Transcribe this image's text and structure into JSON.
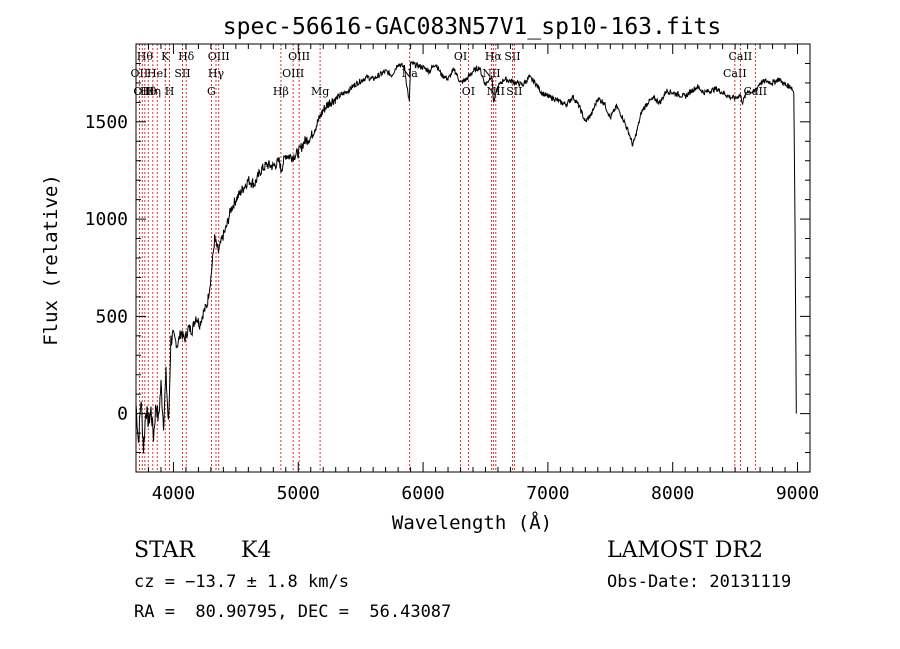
{
  "chart_data": {
    "type": "line",
    "title": "spec-56616-GAC083N57V1_sp10-163.fits",
    "xlabel": "Wavelength (Å)",
    "ylabel": "Flux (relative)",
    "xlim": [
      3700,
      9100
    ],
    "ylim": [
      -300,
      1900
    ],
    "xticks": [
      4000,
      5000,
      6000,
      7000,
      8000,
      9000
    ],
    "yticks": [
      0,
      500,
      1000,
      1500
    ],
    "grid": false,
    "line_color": "#000000",
    "marker_color": "#cc0000",
    "series": [
      {
        "x": [
          3700,
          3720,
          3740,
          3760,
          3780,
          3800,
          3820,
          3840,
          3860,
          3880,
          3900,
          3920,
          3940,
          3960,
          3980,
          4000,
          4030,
          4060,
          4090,
          4120,
          4150,
          4180,
          4210,
          4240,
          4270,
          4300,
          4330,
          4360,
          4390,
          4420,
          4460,
          4500,
          4550,
          4600,
          4650,
          4700,
          4750,
          4800,
          4850,
          4860,
          4900,
          4950,
          5000,
          5050,
          5100,
          5150,
          5200,
          5250,
          5300,
          5350,
          5400,
          5450,
          5500,
          5550,
          5600,
          5650,
          5700,
          5750,
          5800,
          5850,
          5890,
          5900,
          5950,
          6000,
          6050,
          6100,
          6150,
          6200,
          6250,
          6300,
          6350,
          6400,
          6450,
          6500,
          6550,
          6565,
          6600,
          6650,
          6700,
          6750,
          6800,
          6850,
          6900,
          6950,
          7000,
          7050,
          7100,
          7150,
          7200,
          7250,
          7300,
          7350,
          7400,
          7450,
          7500,
          7550,
          7600,
          7650,
          7680,
          7700,
          7750,
          7800,
          7850,
          7900,
          7950,
          8000,
          8050,
          8100,
          8150,
          8200,
          8250,
          8300,
          8350,
          8400,
          8450,
          8500,
          8540,
          8560,
          8600,
          8650,
          8700,
          8750,
          8800,
          8850,
          8900,
          8950,
          8970,
          8980,
          8990
        ],
        "y": [
          50,
          -150,
          80,
          -180,
          30,
          -50,
          20,
          -120,
          50,
          -30,
          150,
          -50,
          200,
          -60,
          380,
          400,
          350,
          420,
          380,
          440,
          430,
          500,
          460,
          520,
          560,
          700,
          900,
          830,
          900,
          950,
          1050,
          1100,
          1150,
          1200,
          1180,
          1250,
          1280,
          1270,
          1300,
          1250,
          1330,
          1320,
          1340,
          1400,
          1420,
          1490,
          1560,
          1600,
          1620,
          1640,
          1660,
          1690,
          1710,
          1730,
          1720,
          1740,
          1760,
          1740,
          1800,
          1780,
          1600,
          1800,
          1790,
          1780,
          1760,
          1800,
          1740,
          1720,
          1770,
          1700,
          1720,
          1760,
          1780,
          1690,
          1740,
          1600,
          1680,
          1720,
          1710,
          1700,
          1690,
          1730,
          1700,
          1650,
          1630,
          1620,
          1600,
          1590,
          1630,
          1580,
          1500,
          1540,
          1620,
          1600,
          1520,
          1580,
          1520,
          1440,
          1380,
          1420,
          1550,
          1600,
          1620,
          1600,
          1660,
          1650,
          1640,
          1630,
          1660,
          1680,
          1650,
          1660,
          1670,
          1650,
          1630,
          1620,
          1640,
          1600,
          1660,
          1650,
          1700,
          1710,
          1700,
          1720,
          1690,
          1680,
          1650,
          1000,
          0
        ]
      }
    ],
    "lines": [
      {
        "wavelength": 3727,
        "label": "OII",
        "row": 2
      },
      {
        "wavelength": 3750,
        "label": "OII",
        "row": 3
      },
      {
        "wavelength": 3771,
        "label": "Hθ",
        "row": 1
      },
      {
        "wavelength": 3798,
        "label": "Hθ",
        "row": 3
      },
      {
        "wavelength": 3835,
        "label": "Hη",
        "row": 3
      },
      {
        "wavelength": 3870,
        "label": "HeI",
        "row": 2
      },
      {
        "wavelength": 3934,
        "label": "K",
        "row": 1
      },
      {
        "wavelength": 3969,
        "label": "H",
        "row": 3
      },
      {
        "wavelength": 4072,
        "label": "SII",
        "row": 2
      },
      {
        "wavelength": 4102,
        "label": "Hδ",
        "row": 1
      },
      {
        "wavelength": 4304,
        "label": "G",
        "row": 3
      },
      {
        "wavelength": 4341,
        "label": "Hγ",
        "row": 2
      },
      {
        "wavelength": 4363,
        "label": "OIII",
        "row": 1
      },
      {
        "wavelength": 4861,
        "label": "Hβ",
        "row": 3
      },
      {
        "wavelength": 4959,
        "label": "OIII",
        "row": 2
      },
      {
        "wavelength": 5007,
        "label": "OIII",
        "row": 1
      },
      {
        "wavelength": 5175,
        "label": "Mg",
        "row": 3
      },
      {
        "wavelength": 5893,
        "label": "Na",
        "row": 2
      },
      {
        "wavelength": 6300,
        "label": "OI",
        "row": 1
      },
      {
        "wavelength": 6363,
        "label": "OI",
        "row": 3
      },
      {
        "wavelength": 6548,
        "label": "NII",
        "row": 2
      },
      {
        "wavelength": 6563,
        "label": "Hα",
        "row": 1
      },
      {
        "wavelength": 6583,
        "label": "NII",
        "row": 3
      },
      {
        "wavelength": 6716,
        "label": "SII",
        "row": 1
      },
      {
        "wavelength": 6731,
        "label": "SII",
        "row": 3
      },
      {
        "wavelength": 8498,
        "label": "CaII",
        "row": 2
      },
      {
        "wavelength": 8542,
        "label": "CaII",
        "row": 1
      },
      {
        "wavelength": 8662,
        "label": "CaII",
        "row": 3
      }
    ]
  },
  "footer": {
    "object_class": "STAR",
    "subclass": "K4",
    "survey": "LAMOST DR2",
    "redshift": "cz = −13.7 ± 1.8 km/s",
    "obs_date": "Obs-Date: 20131119",
    "coords": "RA =  80.90795, DEC =  56.43087"
  }
}
